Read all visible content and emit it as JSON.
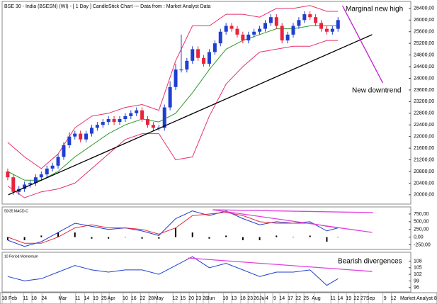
{
  "chart_data": [
    {
      "type": "candlestick",
      "title": "BSE 30 - India (BSESN) (WI) - [ 1 Day ] CandleStick Chart --- Data from : Market Analyst Data",
      "annotations": [
        "Marginal new high",
        "New downtrend"
      ],
      "xlim": [
        0,
        73
      ],
      "ylim": [
        19680,
        26640
      ],
      "yticks": [
        {
          "value": 20000,
          "label": "20000,00"
        },
        {
          "value": 20400,
          "label": "20400,00"
        },
        {
          "value": 20800,
          "label": "20800,00"
        },
        {
          "value": 21200,
          "label": "21200,00"
        },
        {
          "value": 21600,
          "label": "21600,00"
        },
        {
          "value": 22000,
          "label": "22000,00"
        },
        {
          "value": 22400,
          "label": "22400,00"
        },
        {
          "value": 22800,
          "label": "22800,00"
        },
        {
          "value": 23200,
          "label": "23200,00"
        },
        {
          "value": 23600,
          "label": "23600,00"
        },
        {
          "value": 24000,
          "label": "24000,00"
        },
        {
          "value": 24400,
          "label": "24400,00"
        },
        {
          "value": 24800,
          "label": "24800,00"
        },
        {
          "value": 25200,
          "label": "25200,00"
        },
        {
          "value": 25600,
          "label": "25600,00"
        },
        {
          "value": 26000,
          "label": "26000,00"
        },
        {
          "value": 26400,
          "label": "26400,00"
        }
      ],
      "up_color": "#1f3fd0",
      "down_color": "#e8243c",
      "x": [
        1,
        2,
        3,
        4,
        5,
        6,
        7,
        8,
        9,
        10,
        11,
        12,
        13,
        14,
        15,
        16,
        17,
        18,
        19,
        20,
        21,
        22,
        23,
        24,
        25,
        26,
        27,
        28,
        29,
        30,
        31,
        32,
        33,
        34,
        35,
        36,
        37,
        38,
        39,
        40,
        41,
        42,
        43,
        44,
        45,
        46,
        47,
        48,
        49,
        50,
        51,
        52,
        53,
        54,
        55,
        56,
        57,
        58,
        59,
        60
      ],
      "open": [
        20800,
        20600,
        20100,
        20200,
        20350,
        20400,
        20600,
        20700,
        20900,
        21000,
        21300,
        21700,
        22000,
        22100,
        21900,
        22100,
        22300,
        22400,
        22500,
        22600,
        22500,
        22600,
        22700,
        22800,
        22900,
        22600,
        22400,
        22300,
        22300,
        23000,
        23700,
        24300,
        24300,
        24600,
        25000,
        24700,
        24500,
        24900,
        25200,
        25600,
        25800,
        25700,
        25500,
        25300,
        25500,
        25600,
        25700,
        25900,
        26100,
        25800,
        25300,
        25500,
        25800,
        26000,
        26200,
        26100,
        25900,
        25700,
        25600,
        25700
      ],
      "high": [
        20900,
        20700,
        20300,
        20450,
        20500,
        20700,
        20800,
        21000,
        21100,
        21400,
        21800,
        22150,
        22200,
        22200,
        22200,
        22400,
        22500,
        22600,
        22700,
        22700,
        22700,
        22800,
        22900,
        23000,
        23000,
        22700,
        22500,
        22400,
        23100,
        23900,
        24500,
        25500,
        24700,
        25100,
        25100,
        24800,
        25000,
        25300,
        25700,
        25900,
        25900,
        25800,
        25600,
        25600,
        25700,
        25800,
        26000,
        26200,
        26200,
        25900,
        25600,
        25900,
        26100,
        26300,
        26300,
        26200,
        26000,
        25800,
        25800,
        26100
      ],
      "low": [
        20500,
        20000,
        20000,
        20100,
        20250,
        20300,
        20500,
        20600,
        20800,
        20900,
        21200,
        21600,
        21900,
        21800,
        21800,
        22000,
        22200,
        22300,
        22400,
        22400,
        22400,
        22500,
        22600,
        22700,
        22500,
        22300,
        22200,
        22200,
        22200,
        22900,
        23600,
        24200,
        24200,
        24500,
        24600,
        24400,
        24400,
        24800,
        25100,
        25500,
        25600,
        25400,
        25200,
        25200,
        25400,
        25500,
        25600,
        25800,
        25700,
        25200,
        25200,
        25400,
        25700,
        25900,
        26000,
        25800,
        25600,
        25500,
        25500,
        25600
      ],
      "close": [
        20600,
        20100,
        20200,
        20350,
        20400,
        20600,
        20700,
        20900,
        21000,
        21300,
        21700,
        22000,
        22100,
        21900,
        22100,
        22300,
        22400,
        22500,
        22600,
        22500,
        22600,
        22700,
        22800,
        22900,
        22600,
        22400,
        22300,
        22300,
        23000,
        23700,
        24300,
        24300,
        24600,
        25000,
        24700,
        24500,
        24900,
        25200,
        25600,
        25800,
        25700,
        25500,
        25300,
        25500,
        25600,
        25700,
        25900,
        26100,
        25800,
        25300,
        25500,
        25800,
        26000,
        26200,
        26100,
        25900,
        25700,
        25600,
        25700,
        26000
      ],
      "series": [
        {
          "type": "line",
          "color": "#2a9a2a",
          "x": [
            1,
            4,
            7,
            10,
            13,
            16,
            19,
            22,
            25,
            28,
            31,
            34,
            37,
            40,
            43,
            46,
            49,
            52,
            55,
            58,
            60
          ],
          "values": [
            20800,
            20500,
            20500,
            20800,
            21300,
            21700,
            22100,
            22400,
            22600,
            22500,
            22800,
            23500,
            24300,
            25000,
            25300,
            25500,
            25700,
            25700,
            25800,
            25800,
            25800
          ]
        },
        {
          "type": "line",
          "color": "#e8306a",
          "x": [
            1,
            4,
            7,
            10,
            13,
            16,
            19,
            22,
            25,
            28,
            31,
            34,
            37,
            40,
            43,
            46,
            49,
            52,
            55,
            58,
            60
          ],
          "values": [
            21800,
            21300,
            20900,
            21400,
            22300,
            22700,
            22800,
            23000,
            23100,
            22900,
            24600,
            25800,
            25800,
            26200,
            26200,
            26100,
            26400,
            26400,
            26500,
            26300,
            26300
          ]
        },
        {
          "type": "line",
          "color": "#e8306a",
          "x": [
            1,
            4,
            7,
            10,
            13,
            16,
            19,
            22,
            25,
            28,
            31,
            34,
            37,
            40,
            43,
            46,
            49,
            52,
            55,
            58,
            60
          ],
          "values": [
            20300,
            19900,
            20100,
            20200,
            20400,
            20900,
            21400,
            21900,
            22100,
            22100,
            21200,
            21300,
            22700,
            23800,
            24400,
            24900,
            25000,
            25100,
            25100,
            25300,
            25300
          ]
        }
      ],
      "trendlines": [
        {
          "color": "#000000",
          "x": [
            1.1,
            66.1
          ],
          "y": [
            20000,
            25500
          ]
        },
        {
          "color": "#c020d0",
          "x": [
            60.8,
            68.0
          ],
          "y": [
            26490,
            23840
          ]
        }
      ]
    },
    {
      "type": "line",
      "title": "50/35 MACD-C",
      "xlim": [
        0,
        73
      ],
      "ylim": [
        -400,
        980
      ],
      "yticks": [
        {
          "value": -250,
          "label": "-250,00"
        },
        {
          "value": 0,
          "label": "0,00"
        },
        {
          "value": 250,
          "label": "250,00"
        },
        {
          "value": 500,
          "label": "500,00"
        },
        {
          "value": 750,
          "label": "750,00"
        }
      ],
      "series": [
        {
          "type": "bar",
          "color": "#000000",
          "x": [
            1,
            4,
            7,
            10,
            13,
            16,
            19,
            22,
            25,
            28,
            31,
            34,
            37,
            40,
            43,
            46,
            49,
            52,
            55,
            58,
            60
          ],
          "values": [
            -100,
            -100,
            50,
            150,
            150,
            -50,
            -50,
            0,
            -50,
            -50,
            300,
            150,
            -50,
            50,
            -100,
            -100,
            50,
            0,
            50,
            -150,
            0
          ]
        },
        {
          "type": "line",
          "color": "#1f3fd0",
          "x": [
            1,
            4,
            7,
            10,
            13,
            16,
            19,
            22,
            25,
            28,
            31,
            34,
            37,
            40,
            43,
            46,
            49,
            52,
            55,
            58,
            60
          ],
          "values": [
            -100,
            -300,
            -150,
            150,
            450,
            350,
            250,
            300,
            200,
            50,
            600,
            850,
            700,
            850,
            600,
            400,
            500,
            450,
            500,
            200,
            300
          ]
        },
        {
          "type": "line",
          "color": "#e8243c",
          "x": [
            1,
            4,
            7,
            10,
            13,
            16,
            19,
            22,
            25,
            28,
            31,
            34,
            37,
            40,
            43,
            46,
            49,
            52,
            55,
            58,
            60
          ],
          "values": [
            0,
            -200,
            -200,
            0,
            300,
            400,
            300,
            300,
            250,
            100,
            300,
            700,
            750,
            800,
            700,
            500,
            450,
            450,
            450,
            350,
            300
          ]
        }
      ],
      "trendlines": [
        {
          "color": "#e040e0",
          "x": [
            37.6,
            66.3
          ],
          "y": [
            888,
            796
          ]
        },
        {
          "color": "#e040e0",
          "x": [
            37.6,
            66.1
          ],
          "y": [
            888,
            152
          ]
        }
      ]
    },
    {
      "type": "line",
      "title": "10 Period Momentum",
      "annotations": [
        "Bearish divergences"
      ],
      "xlim": [
        0,
        73
      ],
      "ylim": [
        94,
        112
      ],
      "yticks": [
        96,
        99,
        102,
        105,
        108
      ],
      "series": [
        {
          "type": "line",
          "color": "#1f3fd0",
          "x": [
            1,
            4,
            7,
            10,
            13,
            16,
            19,
            22,
            25,
            28,
            31,
            34,
            37,
            40,
            43,
            46,
            49,
            52,
            55,
            58,
            60
          ],
          "values": [
            101,
            99,
            100,
            103,
            106,
            104,
            103,
            104,
            104,
            102,
            106,
            110,
            105,
            107,
            104,
            101,
            103,
            103,
            104,
            97,
            100
          ]
        }
      ],
      "trendlines": [
        {
          "color": "#e040e0",
          "x": [
            33.2,
            66.1
          ],
          "y": [
            109.4,
            103.3
          ]
        }
      ],
      "footer": "Market Analyst 8",
      "xticks": [
        {
          "value": 0.4,
          "label": "18"
        },
        {
          "value": 1.9,
          "label": "Feb"
        },
        {
          "value": 4.2,
          "label": "11"
        },
        {
          "value": 5.7,
          "label": "18"
        },
        {
          "value": 7.5,
          "label": "24"
        },
        {
          "value": 10.8,
          "label": "Mar"
        },
        {
          "value": 13.5,
          "label": "11"
        },
        {
          "value": 15.1,
          "label": "14"
        },
        {
          "value": 16.7,
          "label": "19"
        },
        {
          "value": 18.2,
          "label": "25"
        },
        {
          "value": 19.5,
          "label": "Apr"
        },
        {
          "value": 22.0,
          "label": "10"
        },
        {
          "value": 23.5,
          "label": "16"
        },
        {
          "value": 25.1,
          "label": "22"
        },
        {
          "value": 26.6,
          "label": "28"
        },
        {
          "value": 28.0,
          "label": "May"
        },
        {
          "value": 30.9,
          "label": "12"
        },
        {
          "value": 32.3,
          "label": "15"
        },
        {
          "value": 33.8,
          "label": "20"
        },
        {
          "value": 35.1,
          "label": "23"
        },
        {
          "value": 36.3,
          "label": "28"
        },
        {
          "value": 37.3,
          "label": "Jun"
        },
        {
          "value": 39.9,
          "label": "10"
        },
        {
          "value": 41.4,
          "label": "13"
        },
        {
          "value": 43.0,
          "label": "18"
        },
        {
          "value": 44.3,
          "label": "23"
        },
        {
          "value": 45.4,
          "label": "26"
        },
        {
          "value": 46.5,
          "label": "Jul"
        },
        {
          "value": 47.3,
          "label": "4"
        },
        {
          "value": 48.7,
          "label": "9"
        },
        {
          "value": 50.0,
          "label": "14"
        },
        {
          "value": 51.5,
          "label": "17"
        },
        {
          "value": 52.9,
          "label": "22"
        },
        {
          "value": 54.3,
          "label": "25"
        },
        {
          "value": 56.1,
          "label": "Aug"
        },
        {
          "value": 59.1,
          "label": "11"
        },
        {
          "value": 60.4,
          "label": "14"
        },
        {
          "value": 61.9,
          "label": "19"
        },
        {
          "value": 63.3,
          "label": "22"
        },
        {
          "value": 64.5,
          "label": "27"
        },
        {
          "value": 65.8,
          "label": "Sep"
        },
        {
          "value": 68.4,
          "label": "9"
        },
        {
          "value": 69.9,
          "label": "12"
        }
      ]
    }
  ]
}
